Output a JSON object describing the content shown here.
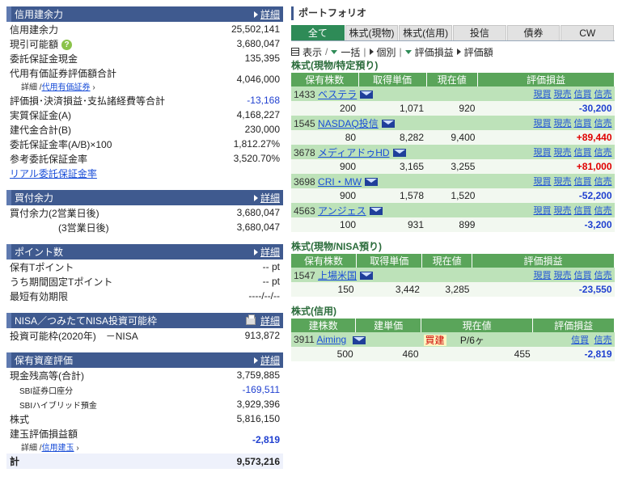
{
  "left": {
    "credit": {
      "title": "信用建余力",
      "detail": "詳細",
      "rows": [
        {
          "label": "信用建余力",
          "value": "25,502,141"
        },
        {
          "label": "現引可能額",
          "value": "3,680,047"
        },
        {
          "label": "委託保証金現金",
          "value": "135,395"
        },
        {
          "label": "代用有価証券評価額合計",
          "value": "4,046,000",
          "sub_prefix": "詳細 /",
          "sub_link": "代用有価証券"
        },
        {
          "label": "評価損･決済損益･支払諸経費等合計",
          "value": "-13,168"
        },
        {
          "label": "実質保証金(A)",
          "value": "4,168,227"
        },
        {
          "label": "建代金合計(B)",
          "value": "230,000"
        },
        {
          "label": "委託保証金率(A/B)×100",
          "value": "1,812.27%"
        },
        {
          "label": "参考委託保証金率",
          "value": "3,520.70%"
        }
      ],
      "link": "リアル委託保証金率"
    },
    "cash": {
      "title": "買付余力",
      "detail": "詳細",
      "rows": [
        {
          "label": "買付余力(2営業日後)",
          "value": "3,680,047"
        },
        {
          "label": "(3営業日後)",
          "value": "3,680,047"
        }
      ]
    },
    "points": {
      "title": "ポイント数",
      "detail": "詳細",
      "rows": [
        {
          "label": "保有Tポイント",
          "value": "-- pt"
        },
        {
          "label": "うち期間固定Tポイント",
          "value": "-- pt"
        },
        {
          "label": "最短有効期限",
          "value": "----/--/--"
        }
      ]
    },
    "nisa": {
      "title": "NISA／つみたてNISA投資可能枠",
      "detail": "詳細",
      "label": "投資可能枠(2020年)　－NISA",
      "value": "913,872"
    },
    "assets": {
      "title": "保有資産評価",
      "detail": "詳細",
      "rows": [
        {
          "label": "現金残高等(合計)",
          "value": "3,759,885"
        },
        {
          "label": "SBI証券口座分",
          "value": "-169,511"
        },
        {
          "label": "SBIハイブリッド預金",
          "value": "3,929,396"
        },
        {
          "label": "株式",
          "value": "5,816,150"
        },
        {
          "label": "建玉評価損益額",
          "value": "-2,819",
          "sub_prefix": "詳細 /",
          "sub_link": "信用建玉"
        }
      ],
      "total_label": "計",
      "total_value": "9,573,216"
    }
  },
  "right": {
    "title": "ポートフォリオ",
    "tabs": [
      "全て",
      "株式(現物)",
      "株式(信用)",
      "投信",
      "債券",
      "CW"
    ],
    "viewbar": {
      "display": "表示",
      "all": "一括",
      "individual": "個別",
      "pl": "評価損益",
      "amount": "評価額"
    },
    "cols": {
      "qty": "保有株数",
      "cost": "取得単価",
      "price": "現在値",
      "pl": "評価損益"
    },
    "acts": [
      "現買",
      "現売",
      "信買",
      "信売"
    ],
    "tokutei": {
      "title": "株式(現物/特定預り)",
      "rows": [
        {
          "code": "1433",
          "name": "ベステラ",
          "qty": "200",
          "cost": "1,071",
          "price": "920",
          "pl": "-30,200"
        },
        {
          "code": "1545",
          "name": "NASDAQ投信",
          "qty": "80",
          "cost": "8,282",
          "price": "9,400",
          "pl": "+89,440"
        },
        {
          "code": "3678",
          "name": "メディアドゥHD",
          "qty": "900",
          "cost": "3,165",
          "price": "3,255",
          "pl": "+81,000"
        },
        {
          "code": "3698",
          "name": "CRI・MW",
          "qty": "900",
          "cost": "1,578",
          "price": "1,520",
          "pl": "-52,200"
        },
        {
          "code": "4563",
          "name": "アンジェス",
          "qty": "100",
          "cost": "931",
          "price": "899",
          "pl": "-3,200"
        }
      ]
    },
    "nisa": {
      "title": "株式(現物/NISA預り)",
      "rows": [
        {
          "code": "1547",
          "name": "上場米国",
          "qty": "150",
          "cost": "3,442",
          "price": "3,285",
          "pl": "-23,550"
        }
      ]
    },
    "margin": {
      "title": "株式(信用)",
      "cols": {
        "qty": "建株数",
        "cost": "建単価",
        "price": "現在値",
        "pl": "評価損益"
      },
      "acts": [
        "信買",
        "信売"
      ],
      "row": {
        "code": "3911",
        "name": "Aiming",
        "tag": "買建",
        "term": "P/6ヶ",
        "qty": "500",
        "cost": "460",
        "price": "455",
        "pl": "-2,819"
      }
    }
  },
  "colors": {
    "header": "#3f5a8f",
    "tab_active": "#2e8b57",
    "name_row": "#bde2b9",
    "neg": "#2040d0",
    "pos": "#e00000"
  }
}
